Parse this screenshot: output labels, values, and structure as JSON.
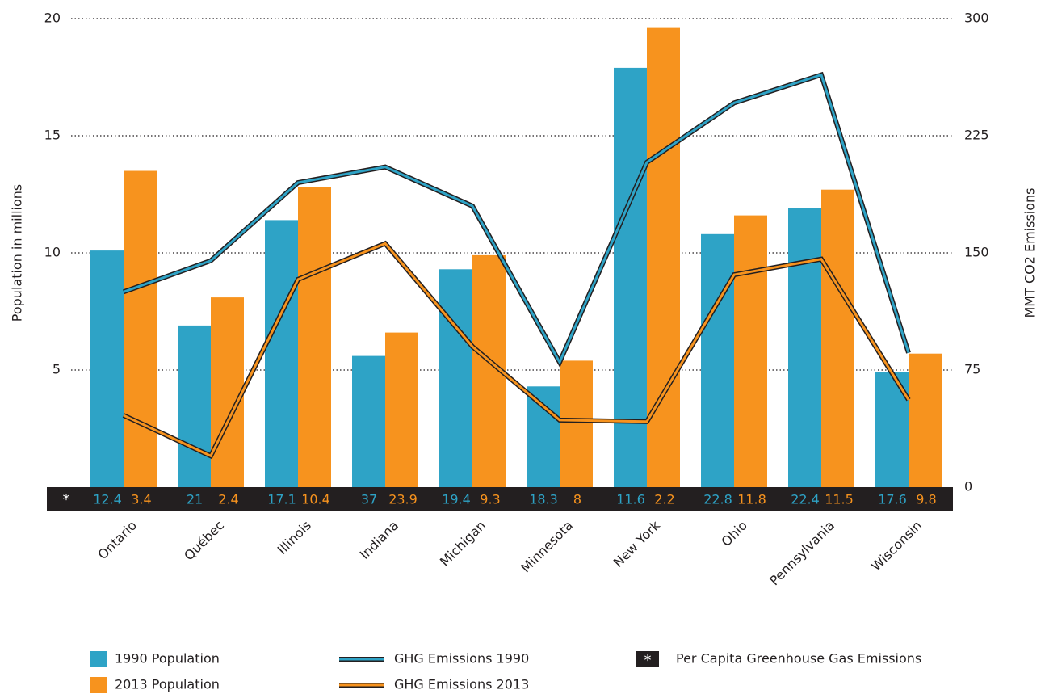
{
  "chart_data": {
    "type": "bar",
    "categories": [
      "Ontario",
      "Québec",
      "Illinois",
      "Indiana",
      "Michigan",
      "Minnesota",
      "New York",
      "Ohio",
      "Pennsylvania",
      "Wisconsin"
    ],
    "ylabel": "Population in millions",
    "y2label": "MMT CO2 Emissions",
    "ylim": [
      0,
      20
    ],
    "yticks": [
      5,
      10,
      15,
      20
    ],
    "y2lim": [
      0,
      300
    ],
    "y2ticks": [
      0,
      75,
      150,
      225,
      300
    ],
    "grid": true,
    "series": [
      {
        "name": "1990 Population",
        "type": "bar",
        "color": "#2ea3c6",
        "values": [
          10.1,
          6.9,
          11.4,
          5.6,
          9.3,
          4.3,
          17.9,
          10.8,
          11.9,
          4.9
        ]
      },
      {
        "name": "2013 Population",
        "type": "bar",
        "color": "#f7931e",
        "values": [
          13.5,
          8.1,
          12.8,
          6.6,
          9.9,
          5.4,
          19.6,
          11.6,
          12.7,
          5.7
        ]
      },
      {
        "name": "GHG Emissions 1990",
        "type": "line",
        "axis": "y2",
        "color": "#2ea3c6",
        "values": [
          125,
          145,
          195,
          205,
          180,
          80,
          208,
          246,
          264,
          86
        ]
      },
      {
        "name": "GHG Emissions 2013",
        "type": "line",
        "axis": "y2",
        "color": "#f7931e",
        "values": [
          46,
          20,
          133,
          156,
          90,
          43,
          42,
          136,
          146,
          56
        ]
      }
    ],
    "per_capita": {
      "name": "Per Capita Greenhouse Gas Emissions",
      "symbol": "*",
      "color": "#231f20",
      "values_1990": [
        12.4,
        21,
        17.1,
        37,
        19.4,
        18.3,
        11.6,
        22.8,
        22.4,
        17.6
      ],
      "values_2013": [
        3.4,
        2.4,
        10.4,
        23.9,
        9.3,
        8,
        2.2,
        11.8,
        11.5,
        9.8
      ]
    }
  }
}
